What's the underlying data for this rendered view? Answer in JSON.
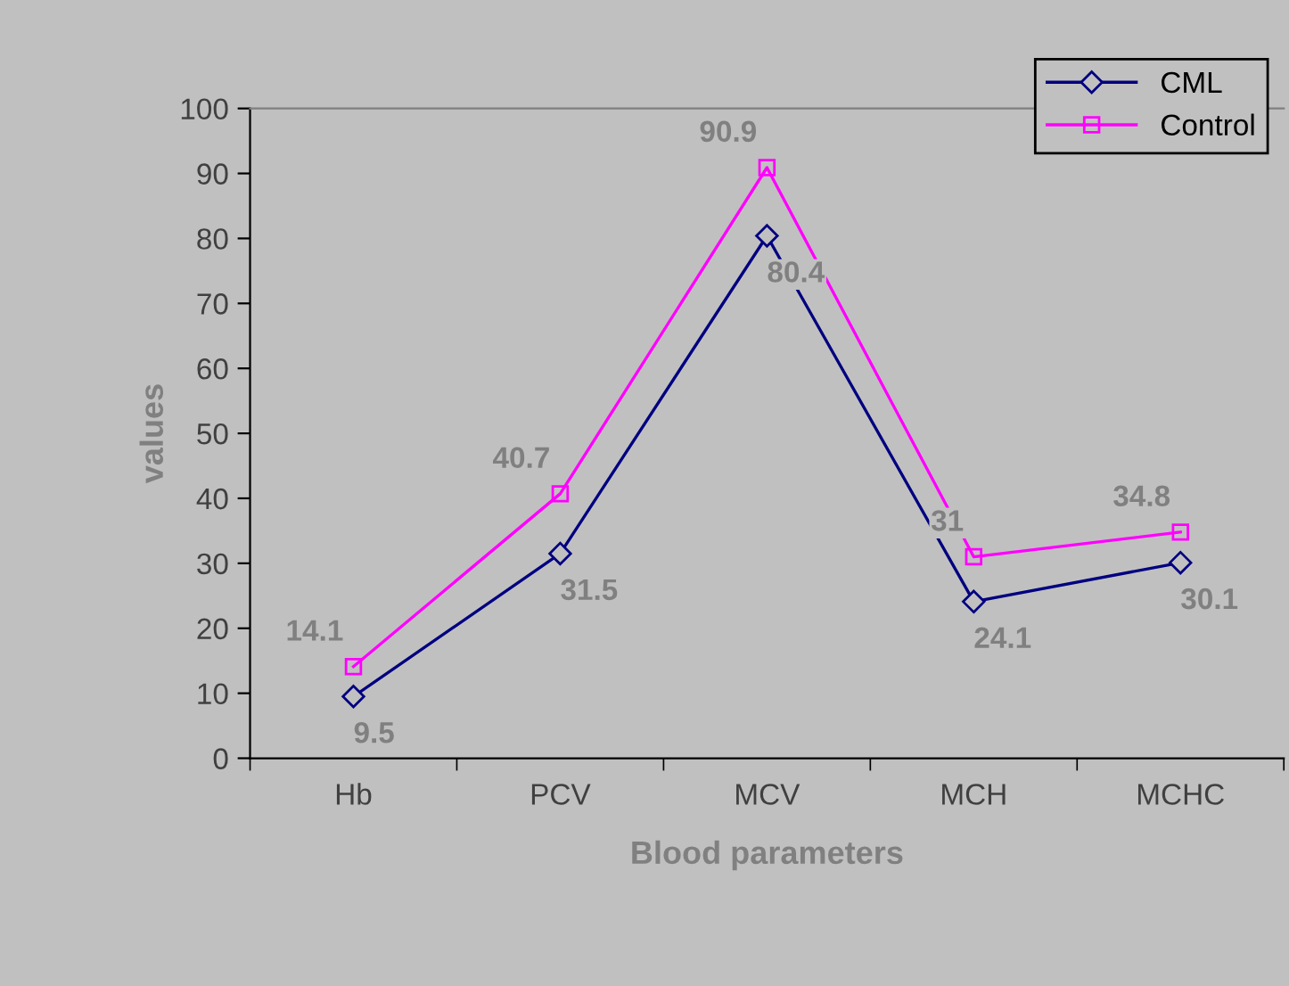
{
  "chart_data": {
    "type": "line",
    "xlabel": "Blood parameters",
    "ylabel": "values",
    "categories": [
      "Hb",
      "PCV",
      "MCV",
      "MCH",
      "MCHC"
    ],
    "series": [
      {
        "name": "CML",
        "color": "#000080",
        "marker": "diamond",
        "values": [
          9.5,
          31.5,
          80.4,
          24.1,
          30.1
        ]
      },
      {
        "name": "Control",
        "color": "#ff00ff",
        "marker": "square",
        "values": [
          14.1,
          40.7,
          90.9,
          31,
          34.8
        ]
      }
    ],
    "ylim": [
      0,
      100
    ],
    "yticks": [
      0,
      10,
      20,
      30,
      40,
      50,
      60,
      70,
      80,
      90,
      100
    ],
    "data_labels": true,
    "grid": false,
    "legend": "top right",
    "line_style": "solid"
  }
}
